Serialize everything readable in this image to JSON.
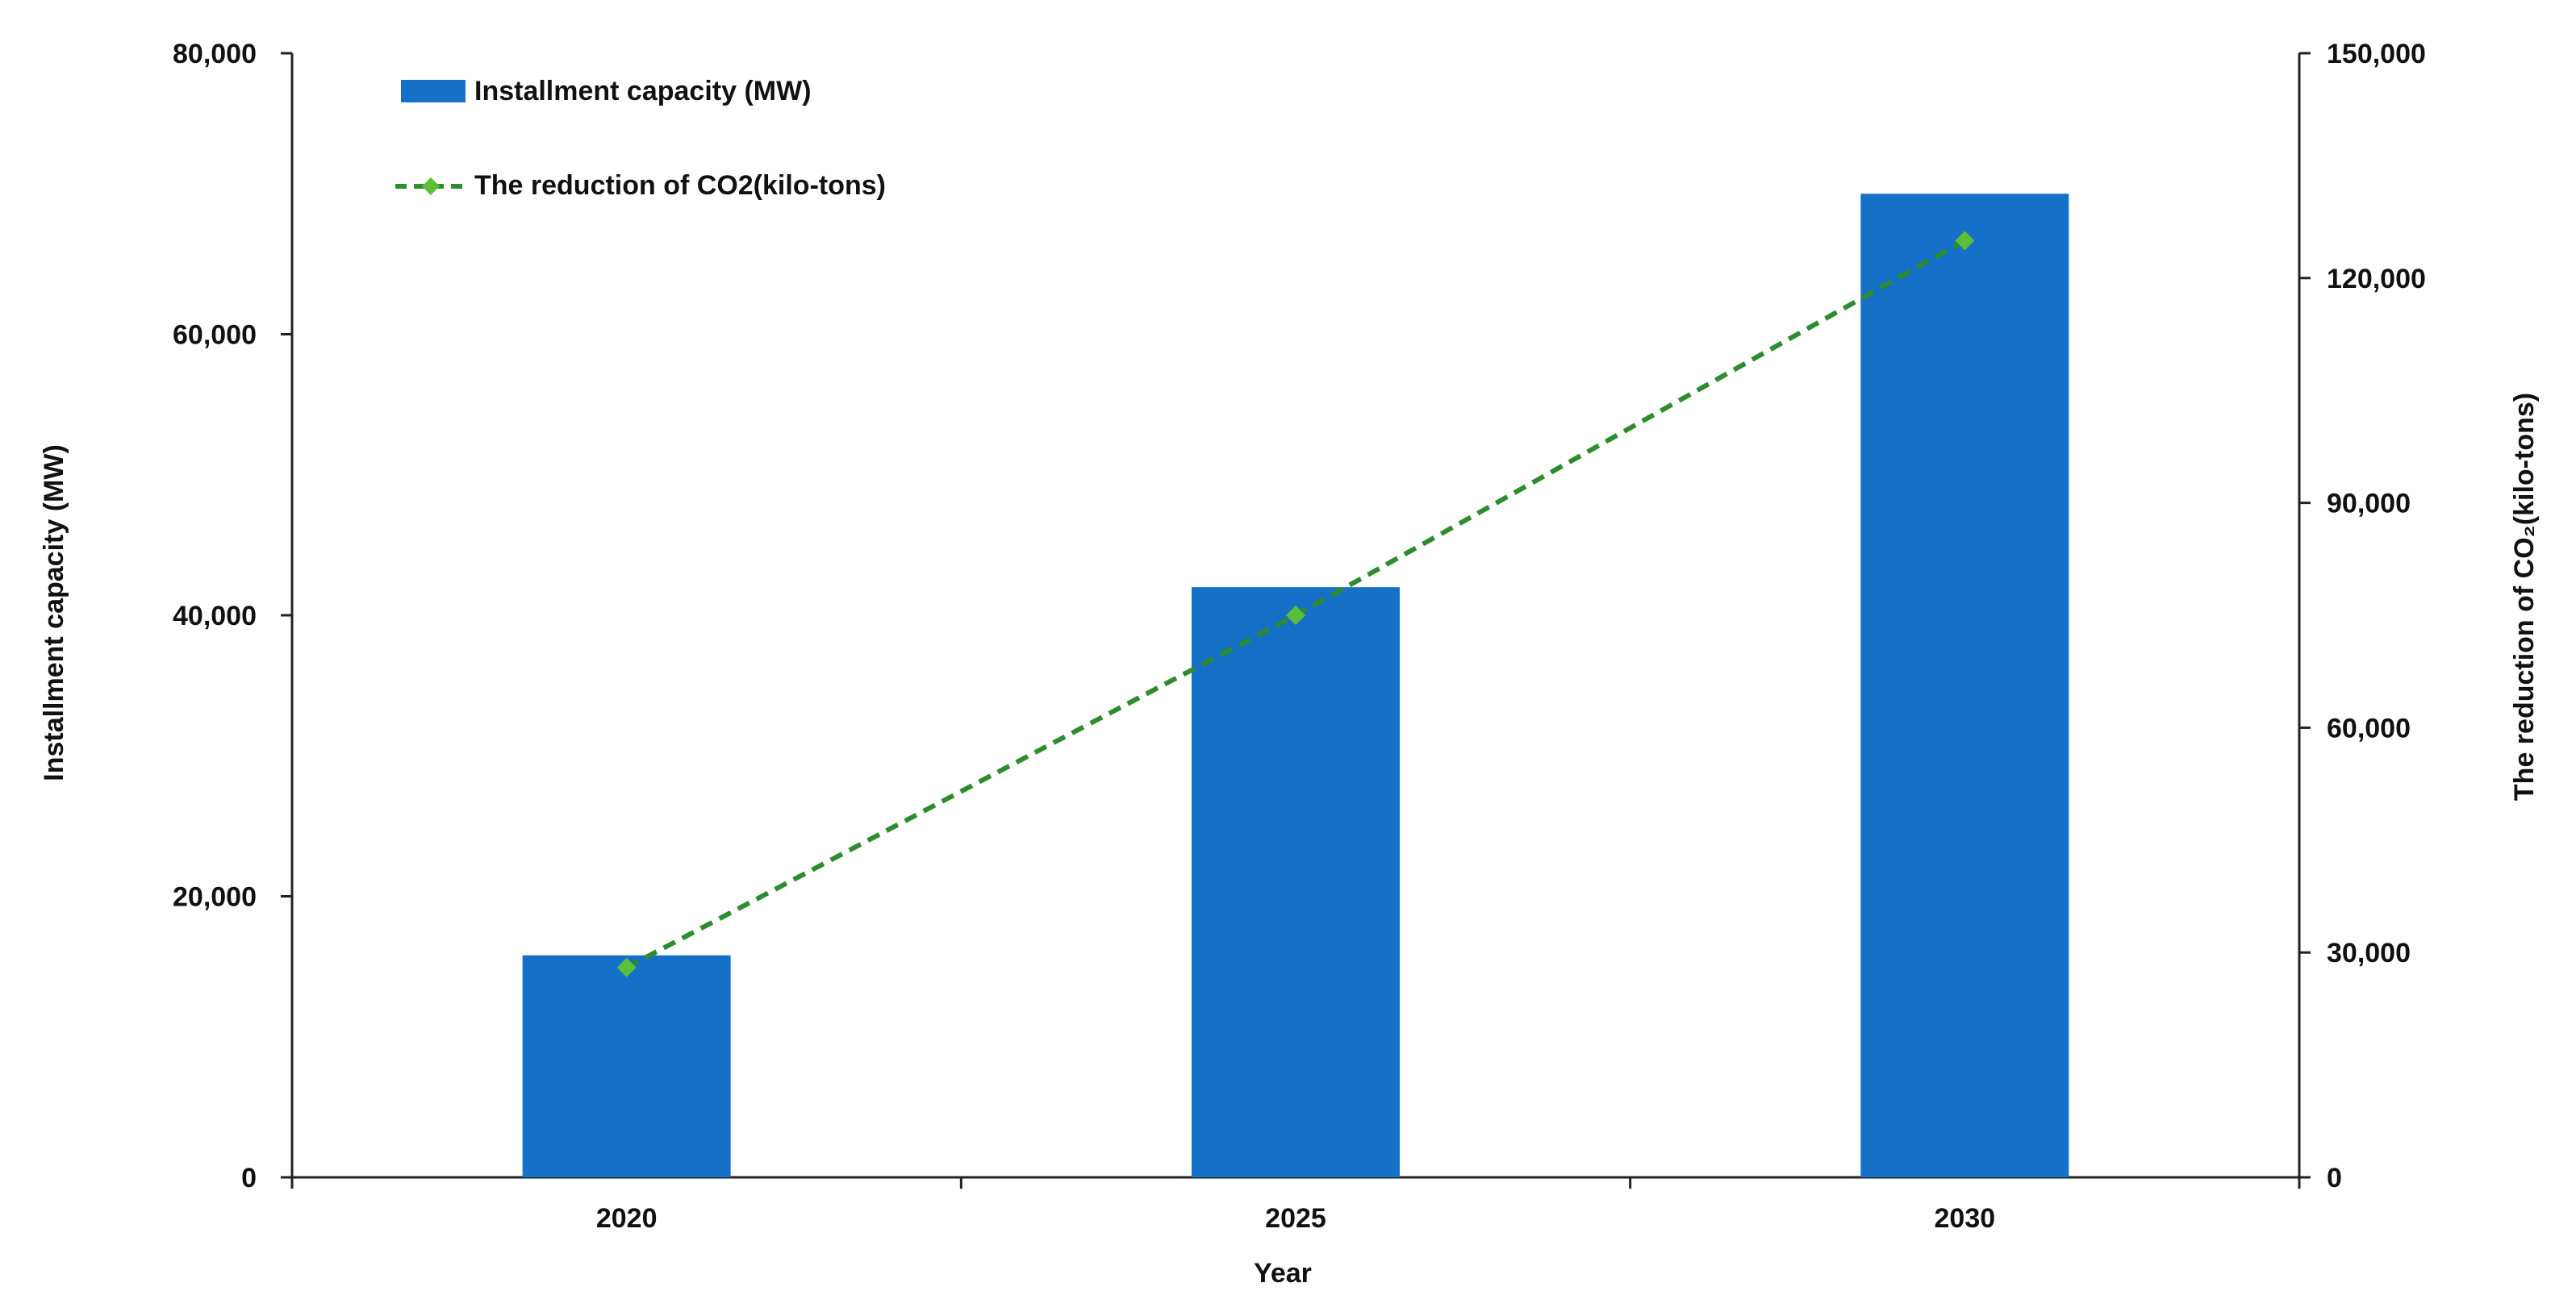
{
  "chart_data": {
    "type": "bar",
    "categories": [
      "2020",
      "2025",
      "2030"
    ],
    "series": [
      {
        "name": "Installment capacity  (MW)",
        "kind": "bar",
        "axis": "left",
        "color": "#1570C8",
        "values": [
          15800,
          42000,
          70000
        ]
      },
      {
        "name": "The reduction of CO2(kilo-tons)",
        "kind": "line",
        "axis": "right",
        "color": "#2E8B2E",
        "marker_color": "#5BBF3A",
        "line_style": "dashed",
        "marker": "diamond",
        "values": [
          28000,
          75000,
          125000
        ]
      }
    ],
    "xlabel": "Year",
    "ylabel_left": "Installment capacity (MW)",
    "ylabel_right": "The reduction of CO₂(kilo-tons)",
    "ylim_left": [
      0,
      80000
    ],
    "ylim_right": [
      0,
      150000
    ],
    "yticks_left": [
      "0",
      "20,000",
      "40,000",
      "60,000",
      "80,000"
    ],
    "yticks_right": [
      "0",
      "30,000",
      "60,000",
      "90,000",
      "120,000",
      "150,000"
    ],
    "grid": false,
    "legend_position": "top-left"
  }
}
